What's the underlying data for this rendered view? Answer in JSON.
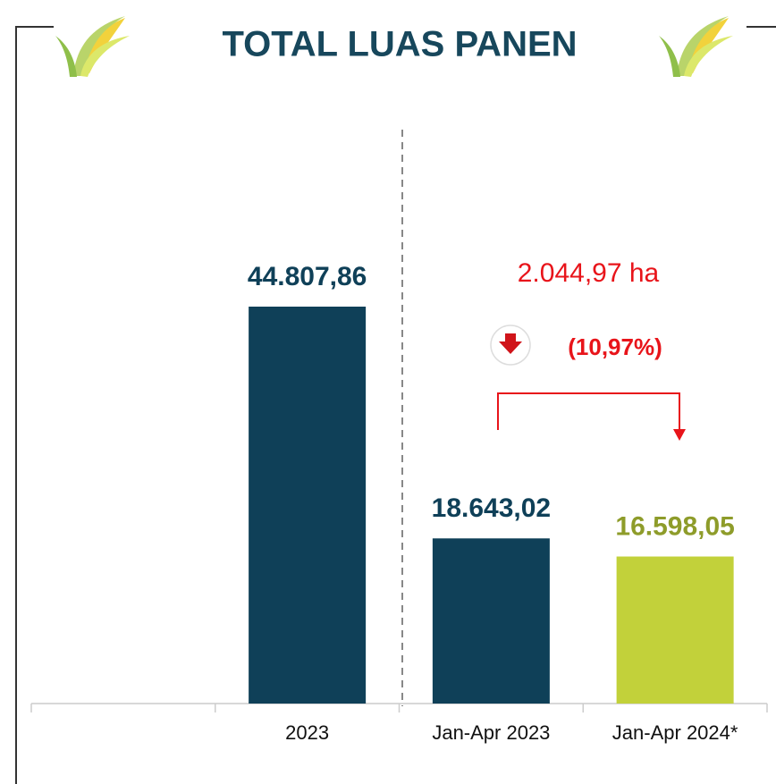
{
  "chart_data": {
    "type": "bar",
    "title": "TOTAL LUAS PANEN",
    "categories": [
      null,
      "2023",
      "Jan-Apr 2023",
      "Jan-Apr 2024*"
    ],
    "values": [
      null,
      44807.86,
      18643.02,
      16598.05
    ],
    "value_labels": [
      null,
      "44.807,86",
      "18.643,02",
      "16.598,05"
    ],
    "colors": [
      null,
      "#0f4058",
      "#0f4058",
      "#c2d13a"
    ],
    "label_colors": [
      null,
      "#0f4058",
      "#0f4058",
      "#8e9c2a"
    ],
    "annotations": [
      "2.044,97 ha",
      "(10,97%)"
    ]
  }
}
